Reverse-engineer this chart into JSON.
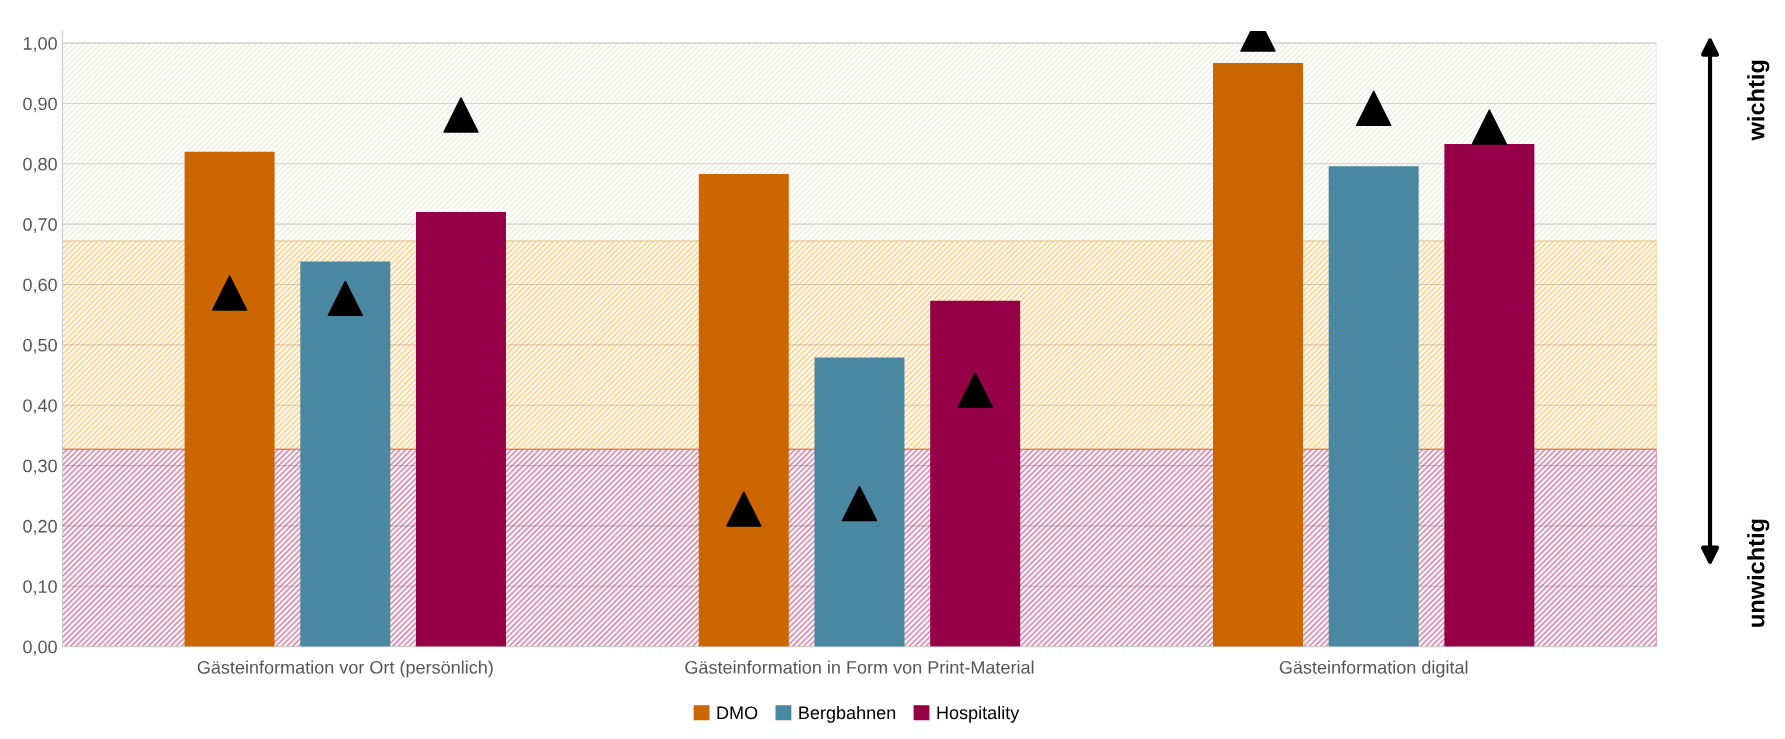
{
  "chart_data": {
    "type": "bar",
    "categories": [
      "Gästeinformation vor Ort (persönlich)",
      "Gästeinformation in Form von Print-Material",
      "Gästeinformation digital"
    ],
    "series": [
      {
        "name": "DMO",
        "color": "#cc6600",
        "values": [
          0.82,
          0.783,
          0.967
        ]
      },
      {
        "name": "Bergbahnen",
        "color": "#4a88a2",
        "values": [
          0.638,
          0.479,
          0.796
        ]
      },
      {
        "name": "Hospitality",
        "color": "#960046",
        "values": [
          0.72,
          0.573,
          0.833
        ]
      },
      {
        "type": "scatter",
        "color": "#000000",
        "values": [
          0.586,
          0.228,
          1.015
        ]
      },
      {
        "type": "scatter",
        "color": "#000000",
        "values": [
          0.577,
          0.237,
          0.892
        ]
      },
      {
        "type": "scatter",
        "color": "#000000",
        "values": [
          0.881,
          0.425,
          0.861
        ]
      }
    ],
    "marker": "triangle",
    "ylim": [
      0,
      1.02
    ],
    "yticks": [
      {
        "value": 0,
        "label": "0,00"
      },
      {
        "value": 0.1,
        "label": "0,10"
      },
      {
        "value": 0.2,
        "label": "0,20"
      },
      {
        "value": 0.3,
        "label": "0,30"
      },
      {
        "value": 0.4,
        "label": "0,40"
      },
      {
        "value": 0.5,
        "label": "0,50"
      },
      {
        "value": 0.6,
        "label": "0,60"
      },
      {
        "value": 0.7,
        "label": "0,70"
      },
      {
        "value": 0.8,
        "label": "0,80"
      },
      {
        "value": 0.9,
        "label": "0,90"
      },
      {
        "value": 1.0,
        "label": "1,00"
      }
    ],
    "bands": [
      {
        "axis": "y",
        "from": 0,
        "to": 0.327,
        "color": "#960046"
      },
      {
        "axis": "y",
        "from": 0.327,
        "to": 0.672,
        "color": "#ff9900"
      },
      {
        "axis": "y",
        "from": 0.672,
        "to": 1.0,
        "color": "#d8dcc0"
      }
    ],
    "annotations": [
      "wichtig",
      "unwichtig"
    ],
    "grid": "y",
    "legend": "bottom"
  }
}
